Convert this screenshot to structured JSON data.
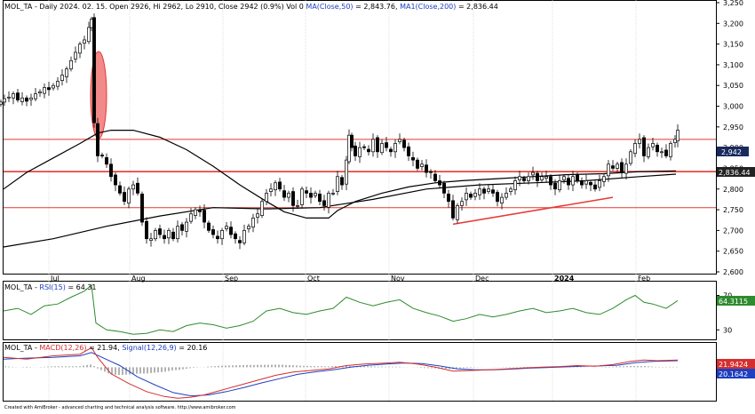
{
  "header": {
    "symbol": "MOL_TA",
    "info_text": "- Daily 2024. 02. 15. Open 2926, Hi 2962, Lo 2910, Close 2942 (0.9%) Vol 0",
    "ma50_label": "MA(Close,50)",
    "ma50_value": "= 2,843.76,",
    "ma200_label": "MA1(Close,200)",
    "ma200_value": "= 2,836.44"
  },
  "price_axis": {
    "ticks": [
      "3,250",
      "3,200",
      "3,150",
      "3,100",
      "3,050",
      "3,000",
      "2,950",
      "2,900",
      "2,850",
      "2,800",
      "2,750",
      "2,700",
      "2,650",
      "2,600"
    ],
    "price_tag": "2,942",
    "ma_tag": "2,836.44"
  },
  "months": [
    "Jul",
    "Aug",
    "Sep",
    "Oct",
    "Nov",
    "Dec",
    "2024",
    "Feb"
  ],
  "rsi": {
    "symbol": "MOL_TA",
    "label": "RSI(15)",
    "value": "= 64.31",
    "tag": "64.3115",
    "ticks": [
      "70",
      "30"
    ]
  },
  "macd": {
    "symbol": "MOL_TA",
    "label": "MACD(12,26)",
    "value": "= 21.94,",
    "signal_label": "Signal(12,26,9)",
    "signal_value": "= 20.16",
    "tag_macd": "21.9424",
    "tag_signal": "20.1642"
  },
  "footer": {
    "credit": "Created with AmiBroker - advanced charting and technical analysis software. http://www.amibroker.com"
  },
  "colors": {
    "resistance": "#e53935",
    "ma": "#000000",
    "ellipse_fill": "#f28a8a",
    "trend": "#e53935",
    "rsi": "#2e8b2e",
    "macd": "#d32f2f",
    "signal": "#1e3fbf",
    "hist": "#555555"
  },
  "chart_data": [
    {
      "type": "candlestick",
      "title": "MOL_TA - Daily",
      "y_range": [
        2600,
        3250
      ],
      "x": [
        "Jul",
        "Aug",
        "Sep",
        "Oct",
        "Nov",
        "Dec",
        "2024",
        "Feb"
      ],
      "ohlc_last": {
        "date": "2024. 02. 15.",
        "open": 2926,
        "high": 2962,
        "low": 2910,
        "close": 2942
      },
      "price_series": [
        [
          1,
          3010
        ],
        [
          5,
          3018
        ],
        [
          10,
          3022
        ],
        [
          15,
          3030
        ],
        [
          20,
          3015
        ],
        [
          25,
          3020
        ],
        [
          30,
          3012
        ],
        [
          35,
          3020
        ],
        [
          40,
          3030
        ],
        [
          45,
          3035
        ],
        [
          50,
          3045
        ],
        [
          55,
          3040
        ],
        [
          60,
          3050
        ],
        [
          65,
          3060
        ],
        [
          70,
          3075
        ],
        [
          75,
          3090
        ],
        [
          80,
          3110
        ],
        [
          85,
          3130
        ],
        [
          90,
          3150
        ],
        [
          95,
          3160
        ],
        [
          100,
          3190
        ],
        [
          103,
          3210
        ],
        [
          106,
          2960
        ],
        [
          110,
          2880
        ],
        [
          115,
          2880
        ],
        [
          120,
          2860
        ],
        [
          125,
          2830
        ],
        [
          130,
          2810
        ],
        [
          135,
          2790
        ],
        [
          140,
          2770
        ],
        [
          145,
          2800
        ],
        [
          150,
          2810
        ],
        [
          155,
          2790
        ],
        [
          160,
          2720
        ],
        [
          165,
          2680
        ],
        [
          170,
          2680
        ],
        [
          175,
          2700
        ],
        [
          180,
          2690
        ],
        [
          185,
          2680
        ],
        [
          190,
          2700
        ],
        [
          195,
          2680
        ],
        [
          200,
          2710
        ],
        [
          205,
          2700
        ],
        [
          210,
          2720
        ],
        [
          215,
          2740
        ],
        [
          220,
          2750
        ],
        [
          225,
          2745
        ],
        [
          230,
          2720
        ],
        [
          235,
          2700
        ],
        [
          240,
          2690
        ],
        [
          245,
          2680
        ],
        [
          250,
          2700
        ],
        [
          255,
          2710
        ],
        [
          260,
          2690
        ],
        [
          265,
          2680
        ],
        [
          270,
          2670
        ],
        [
          275,
          2700
        ],
        [
          280,
          2710
        ],
        [
          285,
          2730
        ],
        [
          290,
          2740
        ],
        [
          295,
          2770
        ],
        [
          300,
          2790
        ],
        [
          305,
          2800
        ],
        [
          310,
          2815
        ],
        [
          315,
          2800
        ],
        [
          320,
          2780
        ],
        [
          325,
          2790
        ],
        [
          330,
          2760
        ],
        [
          335,
          2760
        ],
        [
          340,
          2800
        ],
        [
          345,
          2790
        ],
        [
          350,
          2780
        ],
        [
          355,
          2790
        ],
        [
          360,
          2770
        ],
        [
          365,
          2760
        ],
        [
          370,
          2790
        ],
        [
          375,
          2790
        ],
        [
          380,
          2830
        ],
        [
          385,
          2810
        ],
        [
          390,
          2870
        ],
        [
          393,
          2930
        ],
        [
          396,
          2900
        ],
        [
          400,
          2880
        ],
        [
          405,
          2900
        ],
        [
          410,
          2900
        ],
        [
          415,
          2890
        ],
        [
          420,
          2920
        ],
        [
          425,
          2890
        ],
        [
          430,
          2910
        ],
        [
          435,
          2900
        ],
        [
          440,
          2890
        ],
        [
          445,
          2910
        ],
        [
          450,
          2920
        ],
        [
          455,
          2900
        ],
        [
          460,
          2880
        ],
        [
          465,
          2870
        ],
        [
          470,
          2850
        ],
        [
          475,
          2860
        ],
        [
          480,
          2840
        ],
        [
          485,
          2840
        ],
        [
          490,
          2820
        ],
        [
          495,
          2810
        ],
        [
          500,
          2790
        ],
        [
          505,
          2770
        ],
        [
          510,
          2730
        ],
        [
          515,
          2760
        ],
        [
          520,
          2770
        ],
        [
          525,
          2790
        ],
        [
          530,
          2780
        ],
        [
          535,
          2790
        ],
        [
          540,
          2800
        ],
        [
          545,
          2790
        ],
        [
          550,
          2800
        ],
        [
          555,
          2790
        ],
        [
          560,
          2770
        ],
        [
          565,
          2780
        ],
        [
          570,
          2790
        ],
        [
          575,
          2800
        ],
        [
          580,
          2820
        ],
        [
          585,
          2830
        ],
        [
          590,
          2820
        ],
        [
          595,
          2830
        ],
        [
          600,
          2840
        ],
        [
          605,
          2820
        ],
        [
          610,
          2830
        ],
        [
          615,
          2830
        ],
        [
          620,
          2810
        ],
        [
          625,
          2800
        ],
        [
          630,
          2820
        ],
        [
          635,
          2830
        ],
        [
          640,
          2810
        ],
        [
          645,
          2830
        ],
        [
          650,
          2820
        ],
        [
          655,
          2810
        ],
        [
          660,
          2820
        ],
        [
          665,
          2810
        ],
        [
          670,
          2800
        ],
        [
          675,
          2820
        ],
        [
          680,
          2830
        ],
        [
          685,
          2860
        ],
        [
          690,
          2850
        ],
        [
          695,
          2860
        ],
        [
          700,
          2840
        ],
        [
          705,
          2860
        ],
        [
          710,
          2890
        ],
        [
          715,
          2910
        ],
        [
          720,
          2920
        ],
        [
          725,
          2880
        ],
        [
          730,
          2900
        ],
        [
          735,
          2910
        ],
        [
          740,
          2890
        ],
        [
          745,
          2890
        ],
        [
          750,
          2880
        ],
        [
          755,
          2910
        ],
        [
          760,
          2920
        ],
        [
          763,
          2942
        ]
      ],
      "ma50": [
        [
          4,
          2800
        ],
        [
          30,
          2840
        ],
        [
          60,
          2875
        ],
        [
          90,
          2910
        ],
        [
          110,
          2935
        ],
        [
          125,
          2942
        ],
        [
          150,
          2942
        ],
        [
          180,
          2925
        ],
        [
          210,
          2895
        ],
        [
          240,
          2855
        ],
        [
          270,
          2810
        ],
        [
          300,
          2770
        ],
        [
          320,
          2745
        ],
        [
          345,
          2730
        ],
        [
          370,
          2730
        ],
        [
          380,
          2748
        ],
        [
          400,
          2770
        ],
        [
          430,
          2790
        ],
        [
          460,
          2805
        ],
        [
          490,
          2815
        ],
        [
          520,
          2820
        ],
        [
          560,
          2825
        ],
        [
          600,
          2830
        ],
        [
          640,
          2835
        ],
        [
          680,
          2837
        ],
        [
          720,
          2842
        ],
        [
          761,
          2844
        ]
      ],
      "ma200": [
        [
          4,
          2660
        ],
        [
          60,
          2680
        ],
        [
          120,
          2710
        ],
        [
          180,
          2735
        ],
        [
          240,
          2755
        ],
        [
          300,
          2752
        ],
        [
          360,
          2755
        ],
        [
          420,
          2775
        ],
        [
          480,
          2800
        ],
        [
          540,
          2810
        ],
        [
          600,
          2815
        ],
        [
          660,
          2820
        ],
        [
          720,
          2830
        ],
        [
          761,
          2836
        ]
      ],
      "resistance_levels": [
        2920,
        2842,
        2755
      ],
      "trendline": [
        [
          510,
          2715
        ],
        [
          690,
          2780
        ]
      ],
      "annotation": "ellipse"
    },
    {
      "type": "line",
      "title": "RSI(15)",
      "y_range": [
        20,
        85
      ],
      "levels": [
        70,
        30
      ],
      "last": 64.31,
      "series": [
        [
          4,
          52
        ],
        [
          20,
          55
        ],
        [
          35,
          48
        ],
        [
          50,
          58
        ],
        [
          65,
          60
        ],
        [
          80,
          68
        ],
        [
          95,
          75
        ],
        [
          103,
          82
        ],
        [
          108,
          38
        ],
        [
          120,
          30
        ],
        [
          135,
          28
        ],
        [
          150,
          25
        ],
        [
          165,
          26
        ],
        [
          180,
          30
        ],
        [
          195,
          28
        ],
        [
          210,
          35
        ],
        [
          225,
          38
        ],
        [
          240,
          36
        ],
        [
          255,
          32
        ],
        [
          270,
          35
        ],
        [
          285,
          40
        ],
        [
          300,
          52
        ],
        [
          315,
          55
        ],
        [
          330,
          50
        ],
        [
          345,
          48
        ],
        [
          360,
          52
        ],
        [
          375,
          55
        ],
        [
          390,
          68
        ],
        [
          405,
          62
        ],
        [
          420,
          58
        ],
        [
          435,
          62
        ],
        [
          450,
          65
        ],
        [
          465,
          55
        ],
        [
          480,
          50
        ],
        [
          495,
          46
        ],
        [
          510,
          40
        ],
        [
          525,
          43
        ],
        [
          540,
          48
        ],
        [
          555,
          45
        ],
        [
          570,
          48
        ],
        [
          585,
          52
        ],
        [
          600,
          55
        ],
        [
          615,
          50
        ],
        [
          630,
          52
        ],
        [
          645,
          55
        ],
        [
          660,
          50
        ],
        [
          675,
          48
        ],
        [
          690,
          55
        ],
        [
          705,
          65
        ],
        [
          715,
          70
        ],
        [
          725,
          62
        ],
        [
          735,
          60
        ],
        [
          750,
          55
        ],
        [
          763,
          64
        ]
      ]
    },
    {
      "type": "line",
      "title": "MACD(12,26) Signal(12,26,9)",
      "y_range": [
        -100,
        50
      ],
      "macd_last": 21.94,
      "signal_last": 20.16,
      "macd": [
        [
          4,
          30
        ],
        [
          30,
          25
        ],
        [
          60,
          35
        ],
        [
          90,
          40
        ],
        [
          103,
          60
        ],
        [
          110,
          30
        ],
        [
          125,
          -20
        ],
        [
          145,
          -50
        ],
        [
          165,
          -75
        ],
        [
          185,
          -90
        ],
        [
          200,
          -95
        ],
        [
          215,
          -92
        ],
        [
          230,
          -85
        ],
        [
          250,
          -70
        ],
        [
          270,
          -55
        ],
        [
          290,
          -40
        ],
        [
          310,
          -25
        ],
        [
          330,
          -15
        ],
        [
          350,
          -10
        ],
        [
          370,
          -5
        ],
        [
          390,
          5
        ],
        [
          410,
          10
        ],
        [
          430,
          12
        ],
        [
          450,
          15
        ],
        [
          470,
          10
        ],
        [
          490,
          0
        ],
        [
          510,
          -12
        ],
        [
          530,
          -10
        ],
        [
          550,
          -8
        ],
        [
          570,
          -5
        ],
        [
          590,
          -2
        ],
        [
          610,
          0
        ],
        [
          630,
          2
        ],
        [
          650,
          5
        ],
        [
          670,
          3
        ],
        [
          690,
          8
        ],
        [
          710,
          18
        ],
        [
          725,
          22
        ],
        [
          740,
          20
        ],
        [
          763,
          22
        ]
      ],
      "signal": [
        [
          4,
          25
        ],
        [
          30,
          28
        ],
        [
          60,
          30
        ],
        [
          90,
          35
        ],
        [
          103,
          45
        ],
        [
          115,
          30
        ],
        [
          135,
          5
        ],
        [
          155,
          -30
        ],
        [
          175,
          -55
        ],
        [
          195,
          -78
        ],
        [
          215,
          -88
        ],
        [
          235,
          -85
        ],
        [
          255,
          -75
        ],
        [
          275,
          -62
        ],
        [
          295,
          -48
        ],
        [
          315,
          -35
        ],
        [
          335,
          -22
        ],
        [
          355,
          -14
        ],
        [
          375,
          -8
        ],
        [
          395,
          0
        ],
        [
          415,
          6
        ],
        [
          435,
          10
        ],
        [
          455,
          13
        ],
        [
          475,
          11
        ],
        [
          495,
          4
        ],
        [
          515,
          -5
        ],
        [
          535,
          -8
        ],
        [
          555,
          -8
        ],
        [
          575,
          -6
        ],
        [
          595,
          -3
        ],
        [
          615,
          -1
        ],
        [
          635,
          1
        ],
        [
          655,
          3
        ],
        [
          675,
          4
        ],
        [
          695,
          6
        ],
        [
          715,
          14
        ],
        [
          735,
          18
        ],
        [
          763,
          20
        ]
      ]
    }
  ]
}
